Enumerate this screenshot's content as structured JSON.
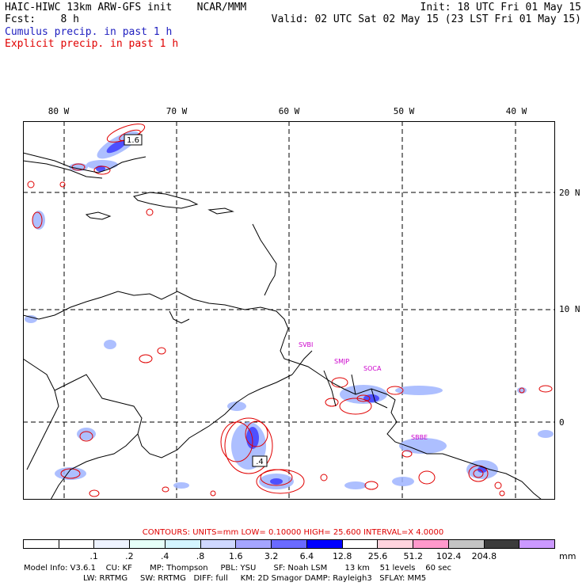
{
  "header": {
    "title": "HAIC-HIWC 13km ARW-GFS init    NCAR/MMM",
    "forecast": "Fcst:    8 h",
    "cumulus_label": "Cumulus precip. in past 1 h",
    "explicit_label": "Explicit precip. in past 1 h",
    "init": "Init: 18 UTC Fri 01 May 15",
    "valid": "Valid: 02 UTC Sat 02 May 15 (23 LST Fri 01 May 15)"
  },
  "map": {
    "lon_labels": [
      "80 W",
      "70 W",
      "60 W",
      "50 W",
      "40 W"
    ],
    "lat_labels": [
      "20 N",
      "10 N",
      "0"
    ],
    "station_labels": [
      "SVBI",
      "SMJP",
      "SOCA",
      "SBBE"
    ],
    "max_labels": [
      "1.6",
      ".4"
    ]
  },
  "contours": "CONTOURS:  UNITS=mm  LOW= 0.10000      HIGH=  25.600      INTERVAL=X  4.0000",
  "colorbar": {
    "unit": "mm",
    "colors": [
      "#ffffff",
      "#ffffff",
      "#eef3ff",
      "#e6fff8",
      "#d4f5ff",
      "#cfd8ff",
      "#a5a5ff",
      "#6a6aff",
      "#0000ff",
      "#ffffff",
      "#ffd4de",
      "#ff99cc",
      "#c4c4c4",
      "#3c3c3c",
      "#cc99ff"
    ],
    "labels": [
      ".1",
      ".2",
      ".4",
      ".8",
      "1.6",
      "3.2",
      "6.4",
      "12.8",
      "25.6",
      "51.2",
      "102.4",
      "204.8"
    ]
  },
  "model_info": {
    "line1": "Model Info: V3.6.1    CU: KF       MP: Thompson     PBL: YSU       SF: Noah LSM       13 km    51 levels    60 sec",
    "line2": "LW: RRTMG     SW: RRTMG   DIFF: full     KM: 2D Smagor DAMP: Rayleigh3   SFLAY: MM5"
  }
}
